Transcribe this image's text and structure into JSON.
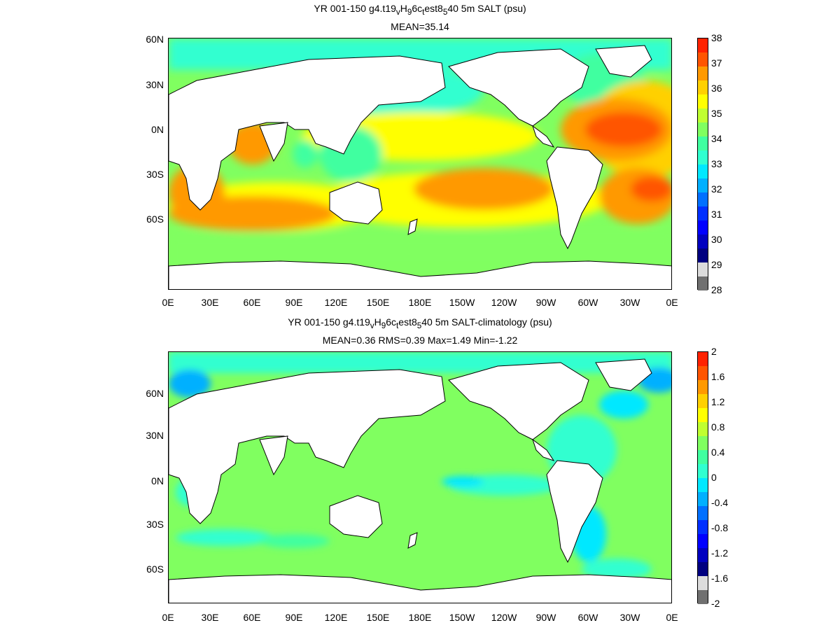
{
  "panels": [
    {
      "title": "YR 001-150 g4.t19_vH_96c_test8_540 5m SALT (psu)",
      "title_parts": [
        "YR 001-150 g4.t19",
        "v",
        "H",
        "9",
        "6c",
        "t",
        "est8",
        "5",
        "40 5m SALT (psu)"
      ],
      "subtitle": "MEAN=35.14",
      "colorbar": {
        "labels": [
          "38",
          "37",
          "36",
          "35",
          "34",
          "33",
          "32",
          "31",
          "30",
          "29",
          "28"
        ],
        "colors": [
          "#ff2200",
          "#ff5500",
          "#ff9900",
          "#ffd000",
          "#ffff00",
          "#c0ff30",
          "#80ff60",
          "#40ffa0",
          "#30ffd0",
          "#00e8ff",
          "#00b0ff",
          "#0070ff",
          "#0030ff",
          "#0000ff",
          "#0000c0",
          "#000080",
          "#dcdcdc",
          "#707070"
        ]
      }
    },
    {
      "title": "YR 001-150 g4.t19_vH_96c_test8_540 5m SALT-climatology (psu)",
      "title_parts": [
        "YR 001-150 g4.t19",
        "v",
        "H",
        "9",
        "6c",
        "t",
        "est8",
        "5",
        "40 5m SALT-climatology (psu)"
      ],
      "subtitle": "MEAN=0.36   RMS=0.39   Max=1.49   Min=-1.22",
      "colorbar": {
        "labels": [
          "2",
          "1.6",
          "1.2",
          "0.8",
          "0.4",
          "0",
          "-0.4",
          "-0.8",
          "-1.2",
          "-1.6",
          "-2"
        ],
        "colors": [
          "#ff2200",
          "#ff5500",
          "#ff9900",
          "#ffd000",
          "#ffff00",
          "#c0ff30",
          "#80ff60",
          "#40ffa0",
          "#30ffd0",
          "#00e8ff",
          "#00b0ff",
          "#0070ff",
          "#0030ff",
          "#0000ff",
          "#0000c0",
          "#000080",
          "#dcdcdc",
          "#707070"
        ]
      }
    }
  ],
  "x_ticks": [
    "0E",
    "30E",
    "60E",
    "90E",
    "120E",
    "150E",
    "180E",
    "150W",
    "120W",
    "90W",
    "60W",
    "30W",
    "0E"
  ],
  "y_ticks": [
    "60N",
    "30N",
    "0N",
    "30S",
    "60S"
  ]
}
